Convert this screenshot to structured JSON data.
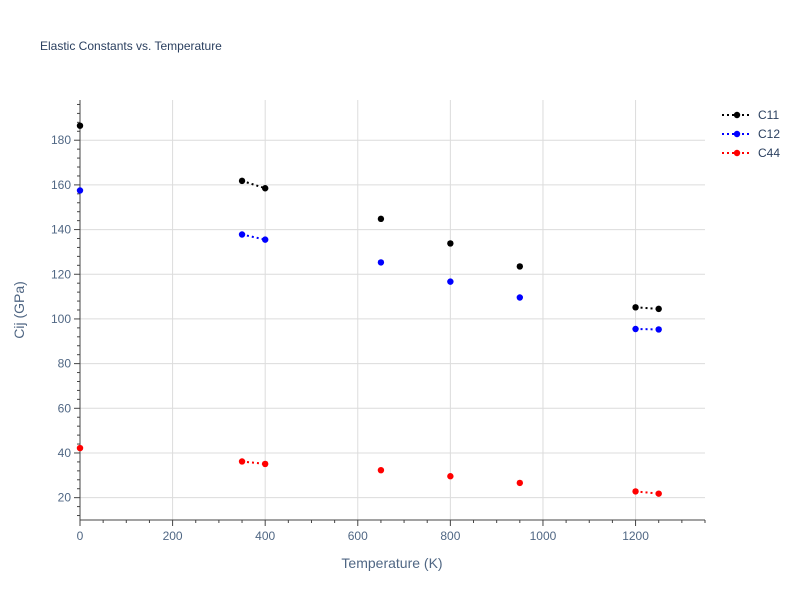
{
  "chart_data": {
    "type": "line",
    "title": "Elastic Constants vs. Temperature",
    "xlabel": "Temperature (K)",
    "ylabel": "Cij (GPa)",
    "xlim": [
      0,
      1350
    ],
    "ylim": [
      10,
      198
    ],
    "x_ticks": [
      0,
      200,
      400,
      600,
      800,
      1000,
      1200
    ],
    "y_ticks": [
      20,
      40,
      60,
      80,
      100,
      120,
      140,
      160,
      180
    ],
    "grid": true,
    "legend_position": "top-right",
    "line_style": "dotted",
    "series": [
      {
        "name": "C11",
        "color": "#000000",
        "points": [
          {
            "x": 0,
            "y": 186.5
          },
          {
            "x": 350,
            "y": 161.8
          },
          {
            "x": 400,
            "y": 158.5
          },
          {
            "x": 650,
            "y": 144.8
          },
          {
            "x": 800,
            "y": 133.8
          },
          {
            "x": 950,
            "y": 123.5
          },
          {
            "x": 1200,
            "y": 105.2
          },
          {
            "x": 1250,
            "y": 104.5
          }
        ],
        "connected_segments": [
          [
            1,
            2
          ],
          [
            6,
            7
          ]
        ]
      },
      {
        "name": "C12",
        "color": "#0000ff",
        "points": [
          {
            "x": 0,
            "y": 157.5
          },
          {
            "x": 350,
            "y": 137.8
          },
          {
            "x": 400,
            "y": 135.5
          },
          {
            "x": 650,
            "y": 125.3
          },
          {
            "x": 800,
            "y": 116.7
          },
          {
            "x": 950,
            "y": 109.6
          },
          {
            "x": 1200,
            "y": 95.5
          },
          {
            "x": 1250,
            "y": 95.3
          }
        ],
        "connected_segments": [
          [
            1,
            2
          ],
          [
            6,
            7
          ]
        ]
      },
      {
        "name": "C44",
        "color": "#ff0000",
        "points": [
          {
            "x": 0,
            "y": 42.2
          },
          {
            "x": 350,
            "y": 36.2
          },
          {
            "x": 400,
            "y": 35.1
          },
          {
            "x": 650,
            "y": 32.3
          },
          {
            "x": 800,
            "y": 29.6
          },
          {
            "x": 950,
            "y": 26.6
          },
          {
            "x": 1200,
            "y": 22.8
          },
          {
            "x": 1250,
            "y": 21.8
          }
        ],
        "connected_segments": [
          [
            1,
            2
          ],
          [
            6,
            7
          ]
        ]
      }
    ]
  }
}
